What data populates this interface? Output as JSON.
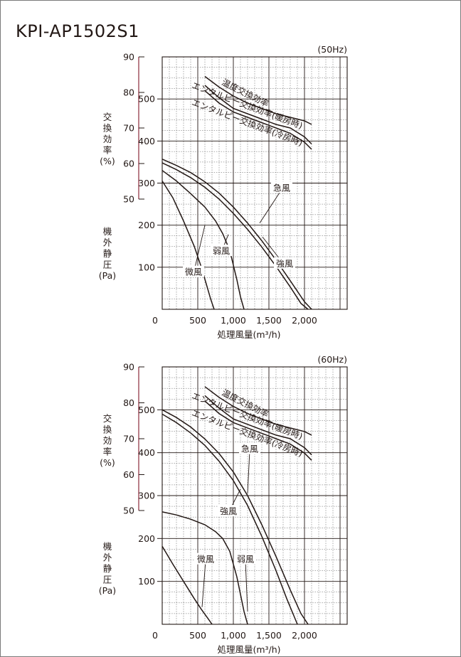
{
  "model": "KPI-AP1502S1",
  "chart_data": [
    {
      "type": "line",
      "title": "(50Hz)",
      "xlabel": "処理風量(m³/h)",
      "xlim": [
        0,
        2600
      ],
      "x_ticks": [
        "0",
        "500",
        "1,000",
        "1,500",
        "2,000"
      ],
      "x_tick_values": [
        0,
        500,
        1000,
        1500,
        2000
      ],
      "eff_axis": {
        "label": [
          "交",
          "換",
          "効",
          "率",
          "(%)"
        ],
        "ticks": [
          "90",
          "80",
          "70",
          "60",
          "50"
        ],
        "tick_values": [
          90,
          80,
          70,
          60,
          50
        ],
        "range": [
          50,
          90
        ]
      },
      "pressure_axis": {
        "label": [
          "機",
          "外",
          "静",
          "圧",
          "(Pa)"
        ],
        "ticks": [
          "500",
          "400",
          "300",
          "200",
          "100"
        ],
        "tick_values": [
          500,
          400,
          300,
          200,
          100
        ],
        "ylim": [
          0,
          600
        ]
      },
      "grid": true,
      "efficiency_series": [
        {
          "name": "温度交換効率",
          "x": [
            600,
            800,
            1000,
            1200,
            1400,
            1600,
            1800,
            2000,
            2100
          ],
          "y": [
            84.5,
            81.5,
            79,
            77,
            75.5,
            74,
            73,
            72,
            71
          ]
        },
        {
          "name": "エンタルピー交換効率(暖房時)",
          "x": [
            600,
            800,
            1000,
            1200,
            1400,
            1600,
            1800,
            2000,
            2100
          ],
          "y": [
            82,
            78.5,
            75.5,
            74,
            72.5,
            71,
            70,
            67.5,
            65.5
          ]
        },
        {
          "name": "エンタルピー交換効率(冷房時)",
          "x": [
            600,
            800,
            1000,
            1200,
            1400,
            1600,
            1800,
            2000,
            2100
          ],
          "y": [
            80.5,
            77,
            74.5,
            73,
            71.5,
            70,
            68.5,
            66,
            64
          ]
        }
      ],
      "pressure_series": [
        {
          "name": "急風",
          "x": [
            0,
            200,
            400,
            600,
            800,
            1000,
            1200,
            1400,
            1600,
            1800,
            2000,
            2100
          ],
          "y": [
            357,
            342,
            325,
            303,
            276,
            243,
            205,
            163,
            117,
            68,
            18,
            0
          ]
        },
        {
          "name": "強風",
          "x": [
            0,
            200,
            400,
            600,
            800,
            1000,
            1200,
            1400,
            1600,
            1800,
            1950,
            2050
          ],
          "y": [
            348,
            332,
            313,
            290,
            262,
            228,
            190,
            148,
            102,
            53,
            14,
            0
          ]
        },
        {
          "name": "弱風",
          "x": [
            0,
            200,
            400,
            600,
            750,
            850,
            950,
            1050,
            1100,
            1150
          ],
          "y": [
            330,
            305,
            275,
            243,
            210,
            180,
            140,
            70,
            30,
            0
          ]
        },
        {
          "name": "微風",
          "x": [
            0,
            150,
            300,
            450,
            550,
            620,
            680,
            730
          ],
          "y": [
            305,
            265,
            210,
            150,
            100,
            60,
            25,
            0
          ]
        }
      ],
      "annotations": [
        "温度交換効率",
        "エンタルピー交換効率(暖房時)",
        "エンタルピー交換効率(冷房時)",
        "急風",
        "強風",
        "弱風",
        "微風"
      ]
    },
    {
      "type": "line",
      "title": "(60Hz)",
      "xlabel": "処理風量(m³/h)",
      "xlim": [
        0,
        2600
      ],
      "x_ticks": [
        "0",
        "500",
        "1,000",
        "1,500",
        "2,000"
      ],
      "x_tick_values": [
        0,
        500,
        1000,
        1500,
        2000
      ],
      "eff_axis": {
        "label": [
          "交",
          "換",
          "効",
          "率",
          "(%)"
        ],
        "ticks": [
          "90",
          "80",
          "70",
          "60",
          "50"
        ],
        "tick_values": [
          90,
          80,
          70,
          60,
          50
        ],
        "range": [
          50,
          90
        ]
      },
      "pressure_axis": {
        "label": [
          "機",
          "外",
          "静",
          "圧",
          "(Pa)"
        ],
        "ticks": [
          "500",
          "400",
          "300",
          "200",
          "100"
        ],
        "tick_values": [
          500,
          400,
          300,
          200,
          100
        ],
        "ylim": [
          0,
          600
        ]
      },
      "grid": true,
      "efficiency_series": [
        {
          "name": "温度交換効率",
          "x": [
            600,
            800,
            1000,
            1200,
            1400,
            1600,
            1800,
            2000,
            2100
          ],
          "y": [
            84.5,
            81.5,
            79,
            77,
            75.5,
            74,
            73,
            72,
            71
          ]
        },
        {
          "name": "エンタルピー交換効率(暖房時)",
          "x": [
            600,
            800,
            1000,
            1200,
            1400,
            1600,
            1800,
            2000,
            2100
          ],
          "y": [
            82,
            78.5,
            75.5,
            74,
            72.5,
            71,
            70,
            67.5,
            65.5
          ]
        },
        {
          "name": "エンタルピー交換効率(冷房時)",
          "x": [
            600,
            800,
            1000,
            1200,
            1400,
            1600,
            1800,
            2000,
            2100
          ],
          "y": [
            80.5,
            77,
            74.5,
            73,
            71.5,
            70,
            68.5,
            66,
            64
          ]
        }
      ],
      "pressure_series": [
        {
          "name": "急風",
          "x": [
            0,
            200,
            400,
            600,
            800,
            1000,
            1200,
            1400,
            1600,
            1800,
            1950,
            2050
          ],
          "y": [
            500,
            482,
            460,
            432,
            398,
            355,
            300,
            232,
            158,
            80,
            25,
            0
          ]
        },
        {
          "name": "強風",
          "x": [
            0,
            200,
            400,
            600,
            800,
            1000,
            1200,
            1400,
            1600,
            1750,
            1850,
            1900
          ],
          "y": [
            490,
            470,
            446,
            417,
            380,
            335,
            277,
            205,
            125,
            60,
            20,
            0
          ]
        },
        {
          "name": "弱風",
          "x": [
            0,
            200,
            400,
            600,
            750,
            850,
            950,
            1050,
            1100,
            1150,
            1200
          ],
          "y": [
            262,
            255,
            245,
            232,
            216,
            200,
            170,
            110,
            70,
            30,
            0
          ]
        },
        {
          "name": "微風",
          "x": [
            0,
            150,
            300,
            450,
            550,
            650,
            700
          ],
          "y": [
            182,
            140,
            100,
            60,
            35,
            12,
            0
          ]
        }
      ],
      "annotations": [
        "温度交換効率",
        "エンタルピー交換効率(暖房時)",
        "エンタルピー交換効率(冷房時)",
        "急風",
        "強風",
        "弱風",
        "微風"
      ]
    }
  ]
}
